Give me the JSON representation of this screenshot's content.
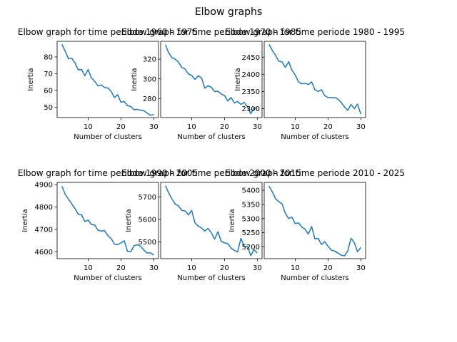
{
  "figure": {
    "suptitle": "Elbow graphs"
  },
  "chart_data": [
    {
      "type": "line",
      "title": "Elbow graph for time periode 1960 - 1975",
      "xlabel": "Number of clusters",
      "ylabel": "Inertia",
      "xlim": [
        0.55,
        31.45
      ],
      "ylim": [
        43.9,
        89.3
      ],
      "xticks": [
        10,
        20,
        30
      ],
      "yticks": [
        50,
        60,
        70,
        80
      ],
      "series": [
        {
          "x": [
            2,
            3,
            4,
            5,
            6,
            7,
            8,
            9,
            10,
            11,
            12,
            13,
            14,
            15,
            16,
            17,
            18,
            19,
            20,
            21,
            22,
            23,
            24,
            25,
            26,
            27,
            28,
            29,
            30
          ],
          "values": [
            87.5,
            83.5,
            79.0,
            79.2,
            76.5,
            72.3,
            72.5,
            68.8,
            72.5,
            67.5,
            65.5,
            62.8,
            63.3,
            61.8,
            61.5,
            59.5,
            55.8,
            57.5,
            53.0,
            53.5,
            51.0,
            50.5,
            48.5,
            48.8,
            48.3,
            48.0,
            46.5,
            45.3,
            45.7
          ]
        }
      ]
    },
    {
      "type": "line",
      "title": "Elbow graph for time periode 1970 - 1985",
      "xlabel": "Number of clusters",
      "ylabel": "Inertia",
      "xlim": [
        0.55,
        31.45
      ],
      "ylim": [
        260.6,
        338.2
      ],
      "xticks": [
        10,
        20,
        30
      ],
      "yticks": [
        280,
        300,
        320
      ],
      "series": [
        {
          "x": [
            2,
            3,
            4,
            5,
            6,
            7,
            8,
            9,
            10,
            11,
            12,
            13,
            14,
            15,
            16,
            17,
            18,
            19,
            20,
            21,
            22,
            23,
            24,
            25,
            26,
            27,
            28,
            29,
            30
          ],
          "values": [
            334.5,
            326.5,
            321.5,
            320.0,
            317.0,
            311.5,
            310.0,
            305.0,
            303.5,
            299.5,
            303.0,
            301.0,
            290.5,
            293.0,
            291.5,
            287.0,
            287.5,
            284.5,
            283.0,
            277.5,
            281.0,
            275.5,
            277.0,
            274.0,
            276.0,
            271.5,
            264.5,
            270.5,
            270.0
          ]
        }
      ]
    },
    {
      "type": "line",
      "title": "Elbow graph for time periode 1980 - 1995",
      "xlabel": "Number of clusters",
      "ylabel": "Inertia",
      "xlim": [
        0.55,
        31.45
      ],
      "ylim": [
        2274,
        2496
      ],
      "xticks": [
        10,
        20,
        30
      ],
      "yticks": [
        2300,
        2350,
        2400,
        2450
      ],
      "series": [
        {
          "x": [
            2,
            3,
            4,
            5,
            6,
            7,
            8,
            9,
            10,
            11,
            12,
            13,
            14,
            15,
            16,
            17,
            18,
            19,
            20,
            21,
            22,
            23,
            24,
            25,
            26,
            27,
            28,
            29,
            30
          ],
          "values": [
            2487,
            2470,
            2455,
            2438,
            2436,
            2420,
            2437,
            2412,
            2398,
            2378,
            2372,
            2374,
            2370,
            2378,
            2355,
            2350,
            2355,
            2338,
            2332,
            2332,
            2332,
            2328,
            2318,
            2305,
            2295,
            2312,
            2300,
            2313,
            2284
          ]
        }
      ]
    },
    {
      "type": "line",
      "title": "Elbow graph for time periode 1990 - 2005",
      "xlabel": "Number of clusters",
      "ylabel": "Inertia",
      "xlim": [
        0.55,
        31.45
      ],
      "ylim": [
        4570,
        4910
      ],
      "xticks": [
        10,
        20,
        30
      ],
      "yticks": [
        4600,
        4700,
        4800,
        4900
      ],
      "series": [
        {
          "x": [
            2,
            3,
            4,
            5,
            6,
            7,
            8,
            9,
            10,
            11,
            12,
            13,
            14,
            15,
            16,
            17,
            18,
            19,
            20,
            21,
            22,
            23,
            24,
            25,
            26,
            27,
            28,
            29,
            30
          ],
          "values": [
            4893,
            4858,
            4835,
            4815,
            4793,
            4768,
            4765,
            4735,
            4742,
            4722,
            4720,
            4697,
            4693,
            4695,
            4673,
            4660,
            4635,
            4632,
            4640,
            4650,
            4602,
            4601,
            4628,
            4632,
            4625,
            4608,
            4595,
            4596,
            4586
          ]
        }
      ]
    },
    {
      "type": "line",
      "title": "Elbow graph for time periode 2000 - 2015",
      "xlabel": "Number of clusters",
      "ylabel": "Inertia",
      "xlim": [
        0.55,
        31.45
      ],
      "ylim": [
        5425,
        5765
      ],
      "xticks": [
        10,
        20,
        30
      ],
      "yticks": [
        5500,
        5600,
        5700
      ],
      "series": [
        {
          "x": [
            2,
            3,
            4,
            5,
            6,
            7,
            8,
            9,
            10,
            11,
            12,
            13,
            14,
            15,
            16,
            17,
            18,
            19,
            20,
            21,
            22,
            23,
            24,
            25,
            26,
            27,
            28,
            29,
            30
          ],
          "values": [
            5750,
            5718,
            5690,
            5668,
            5660,
            5640,
            5638,
            5620,
            5640,
            5585,
            5570,
            5562,
            5548,
            5560,
            5540,
            5512,
            5545,
            5503,
            5495,
            5492,
            5472,
            5462,
            5455,
            5515,
            5480,
            5480,
            5438,
            5465,
            5450
          ]
        }
      ]
    },
    {
      "type": "line",
      "title": "Elbow graph for time periode 2010 - 2025",
      "xlabel": "Number of clusters",
      "ylabel": "Inertia",
      "xlim": [
        0.55,
        31.45
      ],
      "ylim": [
        5158,
        5428
      ],
      "xticks": [
        10,
        20,
        30
      ],
      "yticks": [
        5200,
        5250,
        5300,
        5350,
        5400
      ],
      "series": [
        {
          "x": [
            2,
            3,
            4,
            5,
            6,
            7,
            8,
            9,
            10,
            11,
            12,
            13,
            14,
            15,
            16,
            17,
            18,
            19,
            20,
            21,
            22,
            23,
            24,
            25,
            26,
            27,
            28,
            29,
            30
          ],
          "values": [
            5415,
            5395,
            5370,
            5360,
            5352,
            5318,
            5300,
            5305,
            5282,
            5285,
            5270,
            5262,
            5245,
            5272,
            5228,
            5230,
            5208,
            5218,
            5202,
            5188,
            5185,
            5178,
            5170,
            5168,
            5185,
            5230,
            5215,
            5182,
            5198
          ]
        }
      ]
    }
  ]
}
